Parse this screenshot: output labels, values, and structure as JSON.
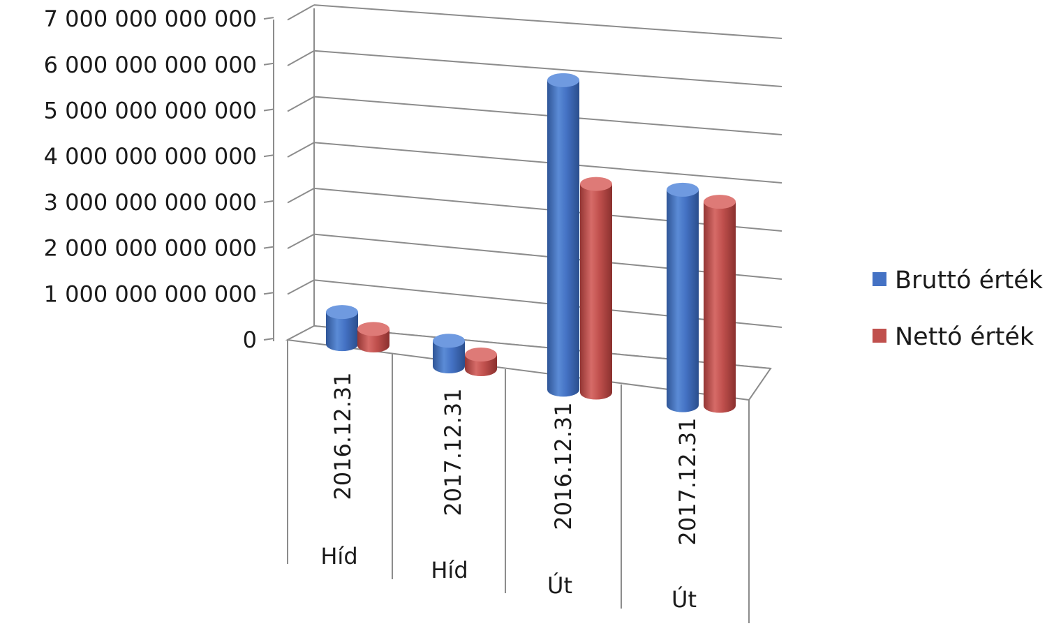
{
  "chart_data": {
    "type": "bar",
    "variant": "3d-cylinder",
    "title": "",
    "xlabel": "",
    "ylabel": "",
    "ylim": [
      0,
      7000000000000
    ],
    "yticks": [
      "0",
      "1 000 000 000 000",
      "2 000 000 000 000",
      "3 000 000 000 000",
      "4 000 000 000 000",
      "5 000 000 000 000",
      "6 000 000 000 000",
      "7 000 000 000 000"
    ],
    "grid": true,
    "legend_position": "right",
    "categories": [
      {
        "date": "2016.12.31",
        "group": "Híd"
      },
      {
        "date": "2017.12.31",
        "group": "Híd"
      },
      {
        "date": "2016.12.31",
        "group": "Út"
      },
      {
        "date": "2017.12.31",
        "group": "Út"
      }
    ],
    "series": [
      {
        "name": "Bruttó érték",
        "color": "#4472C4",
        "values": [
          700000000000,
          560000000000,
          6750000000000,
          4700000000000
        ]
      },
      {
        "name": "Nettó érték",
        "color": "#C0504D",
        "values": [
          360000000000,
          320000000000,
          4550000000000,
          4450000000000
        ]
      }
    ]
  }
}
